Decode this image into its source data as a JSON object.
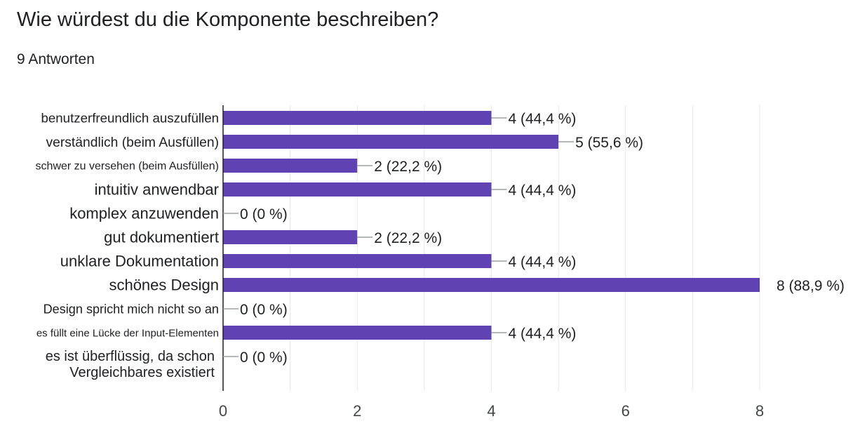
{
  "form": {
    "question": "Wie würdest du die Komponente beschreiben?",
    "responses": "9 Antworten"
  },
  "colors": {
    "bar": "#6042b2",
    "grid": "#e8e8e8",
    "axis": "#202124",
    "leader": "#9aa0a6"
  },
  "chart_data": {
    "type": "bar",
    "orientation": "horizontal",
    "categories": [
      "benutzerfreundlich auszufüllen",
      "verständlich (beim Ausfüllen)",
      "schwer zu versehen (beim Ausfüllen)",
      "intuitiv anwendbar",
      "komplex anzuwenden",
      "gut dokumentiert",
      "unklare Dokumentation",
      "schönes Design",
      "Design spricht mich nicht so an",
      "es füllt eine Lücke der Input-Elementen",
      "es ist überflüssig, da schon Vergleichbares existiert"
    ],
    "category_lines": [
      [
        "benutzerfreundlich auszufüllen"
      ],
      [
        "verständlich (beim Ausfüllen)"
      ],
      [
        "schwer zu versehen (beim Ausfüllen)"
      ],
      [
        "intuitiv anwendbar"
      ],
      [
        "komplex anzuwenden"
      ],
      [
        "gut dokumentiert"
      ],
      [
        "unklare Dokumentation"
      ],
      [
        "schönes Design"
      ],
      [
        "Design spricht mich nicht so an"
      ],
      [
        "es füllt eine Lücke der Input-Elementen"
      ],
      [
        "es ist überflüssig, da schon",
        "Vergleichbares existiert"
      ]
    ],
    "values": [
      4,
      5,
      2,
      4,
      0,
      2,
      4,
      8,
      0,
      4,
      0
    ],
    "data_labels": [
      "4 (44,4 %)",
      "5 (55,6 %)",
      "2 (22,2 %)",
      "4 (44,4 %)",
      "0 (0 %)",
      "2 (22,2 %)",
      "4 (44,4 %)",
      "8 (88,9 %)",
      "0 (0 %)",
      "4 (44,4 %)",
      "0 (0 %)"
    ],
    "xlim": [
      0,
      8
    ],
    "xticks": [
      "0",
      "2",
      "4",
      "6",
      "8"
    ],
    "grid": true,
    "title": "",
    "xlabel": "",
    "ylabel": ""
  }
}
